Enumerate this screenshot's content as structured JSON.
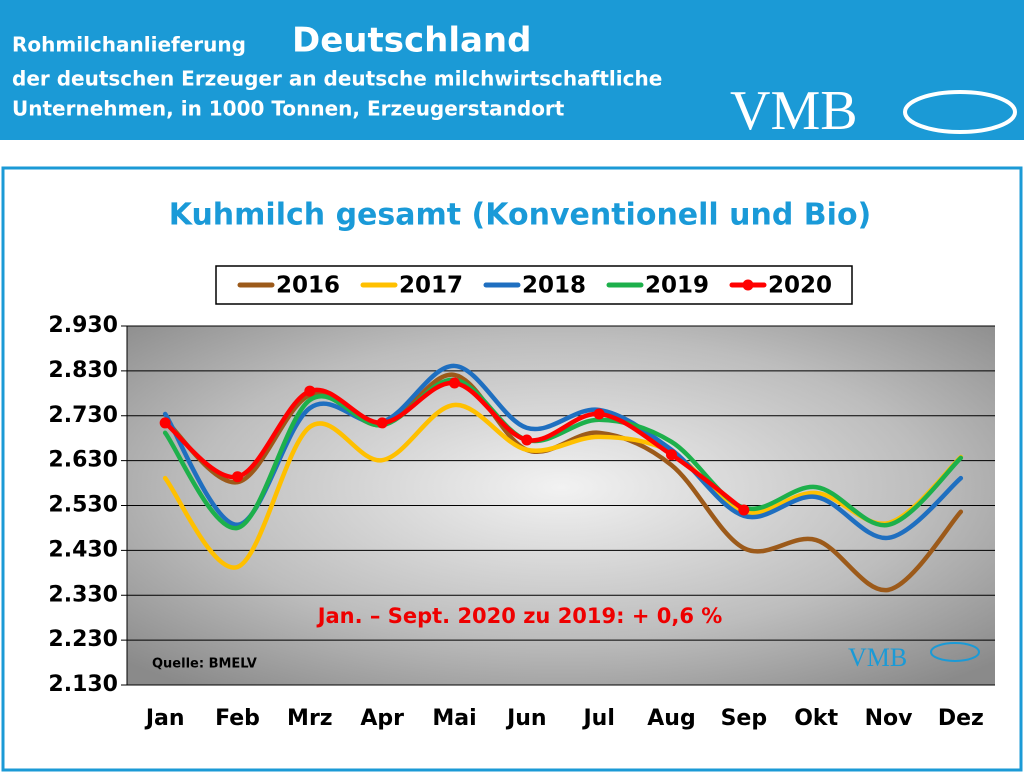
{
  "header": {
    "title_small": "Rohmilchanlieferung",
    "title_big": "Deutschland",
    "subtitle_1": "der deutschen Erzeuger an deutsche milchwirtschaftliche",
    "subtitle_2": "Unternehmen, in 1000 Tonnen, Erzeugerstandort",
    "logo": "VMB"
  },
  "chart_data": {
    "type": "line",
    "title": "Kuhmilch gesamt (Konventionell und Bio)",
    "categories": [
      "Jan",
      "Feb",
      "Mrz",
      "Apr",
      "Mai",
      "Jun",
      "Jul",
      "Aug",
      "Sep",
      "Okt",
      "Nov",
      "Dez"
    ],
    "series": [
      {
        "name": "2016",
        "color": "#9c5a1a",
        "values": [
          2721,
          2582,
          2776,
          2709,
          2821,
          2654,
          2692,
          2620,
          2435,
          2453,
          2342,
          2516
        ]
      },
      {
        "name": "2017",
        "color": "#ffc000",
        "values": [
          2591,
          2393,
          2705,
          2631,
          2754,
          2654,
          2683,
          2649,
          2516,
          2558,
          2491,
          2638
        ]
      },
      {
        "name": "2018",
        "color": "#1f6fc0",
        "values": [
          2734,
          2487,
          2747,
          2716,
          2841,
          2703,
          2743,
          2654,
          2507,
          2549,
          2458,
          2591
        ]
      },
      {
        "name": "2019",
        "color": "#1db04b",
        "values": [
          2692,
          2480,
          2765,
          2709,
          2810,
          2676,
          2721,
          2672,
          2525,
          2571,
          2487,
          2636
        ]
      },
      {
        "name": "2020",
        "color": "#ff0000",
        "markers": true,
        "values": [
          2714,
          2594,
          2785,
          2714,
          2803,
          2676,
          2734,
          2643,
          2520,
          null,
          null,
          null
        ]
      }
    ],
    "ylim": [
      2130,
      2930
    ],
    "yticks": [
      {
        "value": 2130,
        "label": "2.130"
      },
      {
        "value": 2230,
        "label": "2.230"
      },
      {
        "value": 2330,
        "label": "2.330"
      },
      {
        "value": 2430,
        "label": "2.430"
      },
      {
        "value": 2530,
        "label": "2.530"
      },
      {
        "value": 2630,
        "label": "2.630"
      },
      {
        "value": 2730,
        "label": "2.730"
      },
      {
        "value": 2830,
        "label": "2.830"
      },
      {
        "value": 2930,
        "label": "2.930"
      }
    ],
    "grid": true,
    "smooth": true,
    "annotation": "Jan. – Sept. 2020 zu 2019: + 0,6 %",
    "source": "Quelle: BMELV"
  }
}
